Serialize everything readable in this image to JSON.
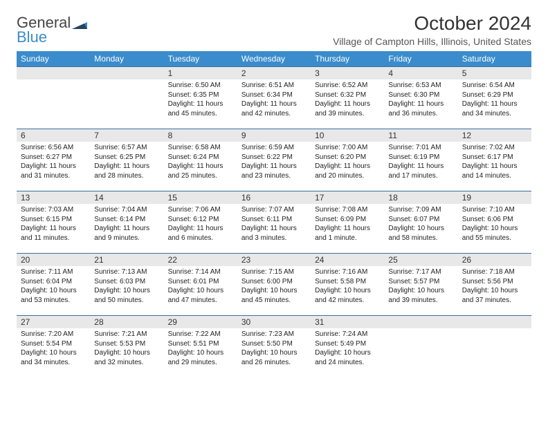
{
  "logo": {
    "general": "General",
    "blue": "Blue"
  },
  "title": "October 2024",
  "location": "Village of Campton Hills, Illinois, United States",
  "colors": {
    "header_bg": "#3a8ccc",
    "header_text": "#ffffff",
    "daynum_bg": "#e8e8e8",
    "rule": "#3a6ea0",
    "logo_gray": "#444444",
    "logo_blue": "#3a8ccc"
  },
  "weekdays": [
    "Sunday",
    "Monday",
    "Tuesday",
    "Wednesday",
    "Thursday",
    "Friday",
    "Saturday"
  ],
  "weeks": [
    [
      null,
      null,
      {
        "n": "1",
        "sr": "Sunrise: 6:50 AM",
        "ss": "Sunset: 6:35 PM",
        "dl": "Daylight: 11 hours and 45 minutes."
      },
      {
        "n": "2",
        "sr": "Sunrise: 6:51 AM",
        "ss": "Sunset: 6:34 PM",
        "dl": "Daylight: 11 hours and 42 minutes."
      },
      {
        "n": "3",
        "sr": "Sunrise: 6:52 AM",
        "ss": "Sunset: 6:32 PM",
        "dl": "Daylight: 11 hours and 39 minutes."
      },
      {
        "n": "4",
        "sr": "Sunrise: 6:53 AM",
        "ss": "Sunset: 6:30 PM",
        "dl": "Daylight: 11 hours and 36 minutes."
      },
      {
        "n": "5",
        "sr": "Sunrise: 6:54 AM",
        "ss": "Sunset: 6:29 PM",
        "dl": "Daylight: 11 hours and 34 minutes."
      }
    ],
    [
      {
        "n": "6",
        "sr": "Sunrise: 6:56 AM",
        "ss": "Sunset: 6:27 PM",
        "dl": "Daylight: 11 hours and 31 minutes."
      },
      {
        "n": "7",
        "sr": "Sunrise: 6:57 AM",
        "ss": "Sunset: 6:25 PM",
        "dl": "Daylight: 11 hours and 28 minutes."
      },
      {
        "n": "8",
        "sr": "Sunrise: 6:58 AM",
        "ss": "Sunset: 6:24 PM",
        "dl": "Daylight: 11 hours and 25 minutes."
      },
      {
        "n": "9",
        "sr": "Sunrise: 6:59 AM",
        "ss": "Sunset: 6:22 PM",
        "dl": "Daylight: 11 hours and 23 minutes."
      },
      {
        "n": "10",
        "sr": "Sunrise: 7:00 AM",
        "ss": "Sunset: 6:20 PM",
        "dl": "Daylight: 11 hours and 20 minutes."
      },
      {
        "n": "11",
        "sr": "Sunrise: 7:01 AM",
        "ss": "Sunset: 6:19 PM",
        "dl": "Daylight: 11 hours and 17 minutes."
      },
      {
        "n": "12",
        "sr": "Sunrise: 7:02 AM",
        "ss": "Sunset: 6:17 PM",
        "dl": "Daylight: 11 hours and 14 minutes."
      }
    ],
    [
      {
        "n": "13",
        "sr": "Sunrise: 7:03 AM",
        "ss": "Sunset: 6:15 PM",
        "dl": "Daylight: 11 hours and 11 minutes."
      },
      {
        "n": "14",
        "sr": "Sunrise: 7:04 AM",
        "ss": "Sunset: 6:14 PM",
        "dl": "Daylight: 11 hours and 9 minutes."
      },
      {
        "n": "15",
        "sr": "Sunrise: 7:06 AM",
        "ss": "Sunset: 6:12 PM",
        "dl": "Daylight: 11 hours and 6 minutes."
      },
      {
        "n": "16",
        "sr": "Sunrise: 7:07 AM",
        "ss": "Sunset: 6:11 PM",
        "dl": "Daylight: 11 hours and 3 minutes."
      },
      {
        "n": "17",
        "sr": "Sunrise: 7:08 AM",
        "ss": "Sunset: 6:09 PM",
        "dl": "Daylight: 11 hours and 1 minute."
      },
      {
        "n": "18",
        "sr": "Sunrise: 7:09 AM",
        "ss": "Sunset: 6:07 PM",
        "dl": "Daylight: 10 hours and 58 minutes."
      },
      {
        "n": "19",
        "sr": "Sunrise: 7:10 AM",
        "ss": "Sunset: 6:06 PM",
        "dl": "Daylight: 10 hours and 55 minutes."
      }
    ],
    [
      {
        "n": "20",
        "sr": "Sunrise: 7:11 AM",
        "ss": "Sunset: 6:04 PM",
        "dl": "Daylight: 10 hours and 53 minutes."
      },
      {
        "n": "21",
        "sr": "Sunrise: 7:13 AM",
        "ss": "Sunset: 6:03 PM",
        "dl": "Daylight: 10 hours and 50 minutes."
      },
      {
        "n": "22",
        "sr": "Sunrise: 7:14 AM",
        "ss": "Sunset: 6:01 PM",
        "dl": "Daylight: 10 hours and 47 minutes."
      },
      {
        "n": "23",
        "sr": "Sunrise: 7:15 AM",
        "ss": "Sunset: 6:00 PM",
        "dl": "Daylight: 10 hours and 45 minutes."
      },
      {
        "n": "24",
        "sr": "Sunrise: 7:16 AM",
        "ss": "Sunset: 5:58 PM",
        "dl": "Daylight: 10 hours and 42 minutes."
      },
      {
        "n": "25",
        "sr": "Sunrise: 7:17 AM",
        "ss": "Sunset: 5:57 PM",
        "dl": "Daylight: 10 hours and 39 minutes."
      },
      {
        "n": "26",
        "sr": "Sunrise: 7:18 AM",
        "ss": "Sunset: 5:56 PM",
        "dl": "Daylight: 10 hours and 37 minutes."
      }
    ],
    [
      {
        "n": "27",
        "sr": "Sunrise: 7:20 AM",
        "ss": "Sunset: 5:54 PM",
        "dl": "Daylight: 10 hours and 34 minutes."
      },
      {
        "n": "28",
        "sr": "Sunrise: 7:21 AM",
        "ss": "Sunset: 5:53 PM",
        "dl": "Daylight: 10 hours and 32 minutes."
      },
      {
        "n": "29",
        "sr": "Sunrise: 7:22 AM",
        "ss": "Sunset: 5:51 PM",
        "dl": "Daylight: 10 hours and 29 minutes."
      },
      {
        "n": "30",
        "sr": "Sunrise: 7:23 AM",
        "ss": "Sunset: 5:50 PM",
        "dl": "Daylight: 10 hours and 26 minutes."
      },
      {
        "n": "31",
        "sr": "Sunrise: 7:24 AM",
        "ss": "Sunset: 5:49 PM",
        "dl": "Daylight: 10 hours and 24 minutes."
      },
      null,
      null
    ]
  ]
}
